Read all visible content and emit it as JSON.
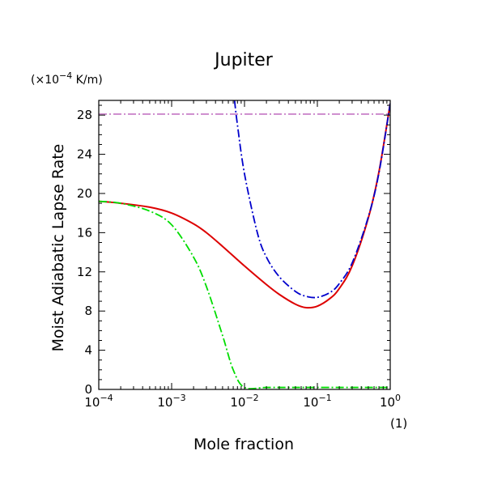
{
  "chart_data": {
    "type": "line",
    "title": "Jupiter",
    "xlabel": "Mole fraction",
    "ylabel": "Moist Adiabatic Lapse Rate",
    "x_unit": "(1)",
    "y_unit_prefix": "(×10",
    "y_unit_exp": "−4",
    "y_unit_suffix": " K/m)",
    "xscale": "log",
    "xlim": [
      0.0001,
      1
    ],
    "ylim": [
      0,
      29.5
    ],
    "y_ticks": [
      "0",
      "4",
      "8",
      "12",
      "16",
      "20",
      "24",
      "28"
    ],
    "x_ticks": [
      {
        "base": "10",
        "exp": "−4"
      },
      {
        "base": "10",
        "exp": "−3"
      },
      {
        "base": "10",
        "exp": "−2"
      },
      {
        "base": "10",
        "exp": "−1"
      },
      {
        "base": "10",
        "exp": "0"
      }
    ],
    "grid": false,
    "legend": false,
    "series": [
      {
        "color": "#dd0000",
        "style": "solid",
        "x": [
          0.0001,
          0.0002,
          0.0005,
          0.001,
          0.002,
          0.003,
          0.005,
          0.01,
          0.02,
          0.03,
          0.05,
          0.07,
          0.1,
          0.15,
          0.2,
          0.3,
          0.5,
          0.7,
          1.0
        ],
        "y": [
          19.2,
          19.0,
          18.6,
          18.0,
          16.9,
          16.0,
          14.6,
          12.6,
          10.7,
          9.7,
          8.7,
          8.35,
          8.5,
          9.3,
          10.3,
          12.6,
          17.5,
          22.2,
          29.2
        ]
      },
      {
        "color": "#0000cc",
        "style": "dashdot",
        "x": [
          0.0073,
          0.008,
          0.01,
          0.015,
          0.02,
          0.03,
          0.05,
          0.07,
          0.1,
          0.15,
          0.2,
          0.3,
          0.5,
          0.7,
          1.0
        ],
        "y": [
          29.5,
          27.0,
          22.0,
          16.0,
          13.5,
          11.5,
          10.0,
          9.5,
          9.4,
          9.9,
          10.8,
          12.9,
          17.6,
          22.1,
          29.2
        ]
      },
      {
        "color": "#00dd00",
        "style": "dashdot",
        "x": [
          0.0001,
          0.0002,
          0.0005,
          0.001,
          0.002,
          0.003,
          0.005,
          0.007,
          0.01,
          0.02,
          0.05,
          0.1,
          0.5,
          1.0
        ],
        "y": [
          19.2,
          19.0,
          18.2,
          16.8,
          13.5,
          10.5,
          5.5,
          2.0,
          0.2,
          0.2,
          0.2,
          0.2,
          0.2,
          0.2
        ]
      },
      {
        "color": "#cc88cc",
        "style": "dashdot",
        "x": [
          0.0001,
          1.0
        ],
        "y": [
          28.1,
          28.1
        ]
      }
    ]
  }
}
